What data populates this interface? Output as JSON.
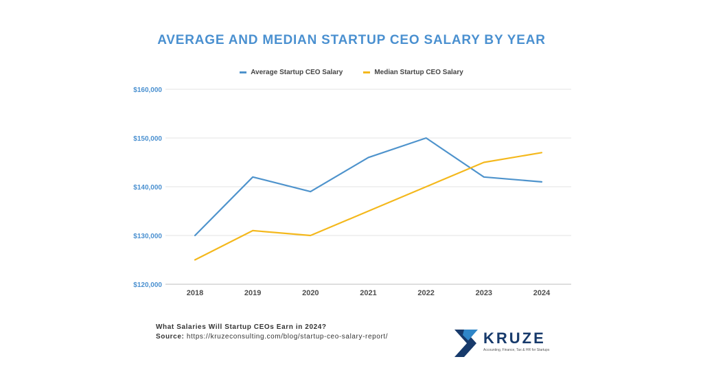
{
  "chart_data": {
    "type": "line",
    "title": "AVERAGE AND MEDIAN STARTUP CEO SALARY BY YEAR",
    "categories": [
      "2018",
      "2019",
      "2020",
      "2021",
      "2022",
      "2023",
      "2024"
    ],
    "series": [
      {
        "name": "Average Startup CEO Salary",
        "color": "#4e93cc",
        "values": [
          130000,
          142000,
          139000,
          146000,
          150000,
          142000,
          141000
        ]
      },
      {
        "name": "Median Startup CEO Salary",
        "color": "#f4b81c",
        "values": [
          125000,
          131000,
          130000,
          135000,
          140000,
          145000,
          147000
        ]
      }
    ],
    "ylim": [
      120000,
      160000
    ],
    "yticks": [
      120000,
      130000,
      140000,
      150000,
      160000
    ],
    "ytick_labels": [
      "$120,000",
      "$130,000",
      "$140,000",
      "$150,000",
      "$160,000"
    ],
    "xlabel": "",
    "ylabel": "",
    "grid": true,
    "legend_position": "top-center"
  },
  "footer": {
    "question": "What Salaries Will Startup CEOs Earn in 2024?",
    "source_label": "Source:",
    "source_url": "https://kruzeconsulting.com/blog/startup-ceo-salary-report/"
  },
  "logo": {
    "name": "KRUZE",
    "tagline": "Accounting, Finance, Tax & HR for Startups",
    "color_dark": "#173a6b",
    "color_light": "#2f86c8"
  }
}
